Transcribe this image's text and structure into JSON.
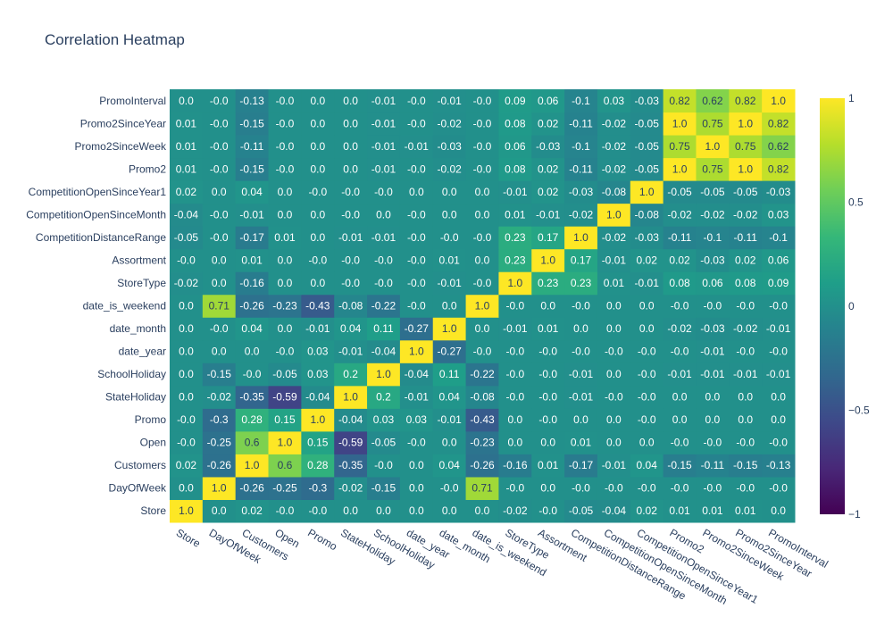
{
  "chart_data": {
    "type": "heatmap",
    "title": "Correlation Heatmap",
    "xlabel": "",
    "ylabel": "",
    "colorscale": "viridis",
    "zrange": [
      -1,
      1
    ],
    "colorbar_ticks": [
      "1",
      "0.5",
      "0",
      "−0.5",
      "−1"
    ],
    "colorbar_tick_values": [
      1,
      0.5,
      0,
      -0.5,
      -1
    ],
    "x_categories": [
      "Store",
      "DayOfWeek",
      "Customers",
      "Open",
      "Promo",
      "StateHoliday",
      "SchoolHoliday",
      "date_year",
      "date_month",
      "date_is_weekend",
      "StoreType",
      "Assortment",
      "CompetitionDistanceRange",
      "CompetitionOpenSinceMonth",
      "CompetitionOpenSinceYear1",
      "Promo2",
      "Promo2SinceWeek",
      "Promo2SinceYear",
      "PromoInterval"
    ],
    "y_categories": [
      "Store",
      "DayOfWeek",
      "Customers",
      "Open",
      "Promo",
      "StateHoliday",
      "SchoolHoliday",
      "date_year",
      "date_month",
      "date_is_weekend",
      "StoreType",
      "Assortment",
      "CompetitionDistanceRange",
      "CompetitionOpenSinceMonth",
      "CompetitionOpenSinceYear1",
      "Promo2",
      "Promo2SinceWeek",
      "Promo2SinceYear",
      "PromoInterval"
    ],
    "z": [
      [
        "1.0",
        "0.0",
        "0.02",
        "-0.0",
        "-0.0",
        "0.0",
        "0.0",
        "0.0",
        "0.0",
        "0.0",
        "-0.02",
        "-0.0",
        "-0.05",
        "-0.04",
        "0.02",
        "0.01",
        "0.01",
        "0.01",
        "0.0"
      ],
      [
        "0.0",
        "1.0",
        "-0.26",
        "-0.25",
        "-0.3",
        "-0.02",
        "-0.15",
        "0.0",
        "-0.0",
        "0.71",
        "-0.0",
        "0.0",
        "-0.0",
        "-0.0",
        "-0.0",
        "-0.0",
        "-0.0",
        "-0.0",
        "-0.0"
      ],
      [
        "0.02",
        "-0.26",
        "1.0",
        "0.6",
        "0.28",
        "-0.35",
        "-0.0",
        "0.0",
        "0.04",
        "-0.26",
        "-0.16",
        "0.01",
        "-0.17",
        "-0.01",
        "0.04",
        "-0.15",
        "-0.11",
        "-0.15",
        "-0.13"
      ],
      [
        "-0.0",
        "-0.25",
        "0.6",
        "1.0",
        "0.15",
        "-0.59",
        "-0.05",
        "-0.0",
        "0.0",
        "-0.23",
        "0.0",
        "0.0",
        "0.01",
        "0.0",
        "0.0",
        "-0.0",
        "-0.0",
        "-0.0",
        "-0.0"
      ],
      [
        "-0.0",
        "-0.3",
        "0.28",
        "0.15",
        "1.0",
        "-0.04",
        "0.03",
        "0.03",
        "-0.01",
        "-0.43",
        "0.0",
        "-0.0",
        "0.0",
        "0.0",
        "-0.0",
        "0.0",
        "0.0",
        "0.0",
        "0.0"
      ],
      [
        "0.0",
        "-0.02",
        "-0.35",
        "-0.59",
        "-0.04",
        "1.0",
        "0.2",
        "-0.01",
        "0.04",
        "-0.08",
        "-0.0",
        "-0.0",
        "-0.01",
        "-0.0",
        "-0.0",
        "0.0",
        "0.0",
        "0.0",
        "0.0"
      ],
      [
        "0.0",
        "-0.15",
        "-0.0",
        "-0.05",
        "0.03",
        "0.2",
        "1.0",
        "-0.04",
        "0.11",
        "-0.22",
        "-0.0",
        "-0.0",
        "-0.01",
        "0.0",
        "-0.0",
        "-0.01",
        "-0.01",
        "-0.01",
        "-0.01"
      ],
      [
        "0.0",
        "0.0",
        "0.0",
        "-0.0",
        "0.03",
        "-0.01",
        "-0.04",
        "1.0",
        "-0.27",
        "-0.0",
        "-0.0",
        "-0.0",
        "-0.0",
        "-0.0",
        "-0.0",
        "-0.0",
        "-0.01",
        "-0.0",
        "-0.0"
      ],
      [
        "0.0",
        "-0.0",
        "0.04",
        "0.0",
        "-0.01",
        "0.04",
        "0.11",
        "-0.27",
        "1.0",
        "0.0",
        "-0.01",
        "0.01",
        "0.0",
        "0.0",
        "0.0",
        "-0.02",
        "-0.03",
        "-0.02",
        "-0.01"
      ],
      [
        "0.0",
        "0.71",
        "-0.26",
        "-0.23",
        "-0.43",
        "-0.08",
        "-0.22",
        "-0.0",
        "0.0",
        "1.0",
        "-0.0",
        "0.0",
        "-0.0",
        "0.0",
        "0.0",
        "-0.0",
        "-0.0",
        "-0.0",
        "-0.0"
      ],
      [
        "-0.02",
        "0.0",
        "-0.16",
        "0.0",
        "0.0",
        "-0.0",
        "-0.0",
        "-0.0",
        "-0.01",
        "-0.0",
        "1.0",
        "0.23",
        "0.23",
        "0.01",
        "-0.01",
        "0.08",
        "0.06",
        "0.08",
        "0.09"
      ],
      [
        "-0.0",
        "0.0",
        "0.01",
        "0.0",
        "-0.0",
        "-0.0",
        "-0.0",
        "-0.0",
        "0.01",
        "0.0",
        "0.23",
        "1.0",
        "0.17",
        "-0.01",
        "0.02",
        "0.02",
        "-0.03",
        "0.02",
        "0.06"
      ],
      [
        "-0.05",
        "-0.0",
        "-0.17",
        "0.01",
        "0.0",
        "-0.01",
        "-0.01",
        "-0.0",
        "-0.0",
        "-0.0",
        "0.23",
        "0.17",
        "1.0",
        "-0.02",
        "-0.03",
        "-0.11",
        "-0.1",
        "-0.11",
        "-0.1"
      ],
      [
        "-0.04",
        "-0.0",
        "-0.01",
        "0.0",
        "0.0",
        "-0.0",
        "0.0",
        "-0.0",
        "0.0",
        "0.0",
        "0.01",
        "-0.01",
        "-0.02",
        "1.0",
        "-0.08",
        "-0.02",
        "-0.02",
        "-0.02",
        "0.03"
      ],
      [
        "0.02",
        "0.0",
        "0.04",
        "0.0",
        "-0.0",
        "-0.0",
        "-0.0",
        "0.0",
        "0.0",
        "0.0",
        "-0.01",
        "0.02",
        "-0.03",
        "-0.08",
        "1.0",
        "-0.05",
        "-0.05",
        "-0.05",
        "-0.03"
      ],
      [
        "0.01",
        "-0.0",
        "-0.15",
        "-0.0",
        "0.0",
        "0.0",
        "-0.01",
        "-0.0",
        "-0.02",
        "-0.0",
        "0.08",
        "0.02",
        "-0.11",
        "-0.02",
        "-0.05",
        "1.0",
        "0.75",
        "1.0",
        "0.82"
      ],
      [
        "0.01",
        "-0.0",
        "-0.11",
        "-0.0",
        "0.0",
        "0.0",
        "-0.01",
        "-0.01",
        "-0.03",
        "-0.0",
        "0.06",
        "-0.03",
        "-0.1",
        "-0.02",
        "-0.05",
        "0.75",
        "1.0",
        "0.75",
        "0.62"
      ],
      [
        "0.01",
        "-0.0",
        "-0.15",
        "-0.0",
        "0.0",
        "0.0",
        "-0.01",
        "-0.0",
        "-0.02",
        "-0.0",
        "0.08",
        "0.02",
        "-0.11",
        "-0.02",
        "-0.05",
        "1.0",
        "0.75",
        "1.0",
        "0.82"
      ],
      [
        "0.0",
        "-0.0",
        "-0.13",
        "-0.0",
        "0.0",
        "0.0",
        "-0.01",
        "-0.0",
        "-0.01",
        "-0.0",
        "0.09",
        "0.06",
        "-0.1",
        "0.03",
        "-0.03",
        "0.82",
        "0.62",
        "0.82",
        "1.0"
      ]
    ]
  }
}
